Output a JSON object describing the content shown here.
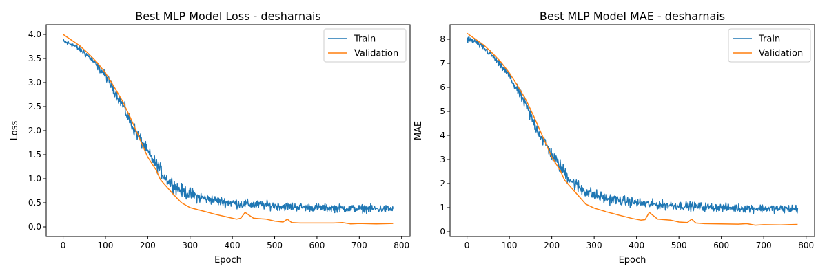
{
  "chart_data": [
    {
      "type": "line",
      "title": "Best MLP Model Loss - desharnais",
      "xlabel": "Epoch",
      "ylabel": "Loss",
      "xlim": [
        -40,
        820
      ],
      "ylim": [
        -0.2,
        4.2
      ],
      "xticks": [
        0,
        100,
        200,
        300,
        400,
        500,
        600,
        700,
        800
      ],
      "yticks": [
        0.0,
        0.5,
        1.0,
        1.5,
        2.0,
        2.5,
        3.0,
        3.5,
        4.0
      ],
      "ytick_labels": [
        "0.0",
        "0.5",
        "1.0",
        "1.5",
        "2.0",
        "2.5",
        "3.0",
        "3.5",
        "4.0"
      ],
      "legend": "top-right",
      "grid": false,
      "series": [
        {
          "name": "Train",
          "color": "#1f77b4",
          "x": [
            0,
            10,
            20,
            30,
            40,
            50,
            60,
            70,
            80,
            90,
            100,
            110,
            120,
            130,
            140,
            150,
            160,
            170,
            180,
            190,
            200,
            210,
            220,
            230,
            240,
            250,
            260,
            270,
            280,
            290,
            300,
            320,
            340,
            360,
            380,
            400,
            420,
            450,
            480,
            510,
            540,
            570,
            600,
            640,
            680,
            720,
            760,
            780
          ],
          "y": [
            3.85,
            3.82,
            3.8,
            3.74,
            3.68,
            3.62,
            3.55,
            3.45,
            3.35,
            3.25,
            3.15,
            3.0,
            2.85,
            2.7,
            2.55,
            2.35,
            2.15,
            2.0,
            1.85,
            1.7,
            1.55,
            1.42,
            1.3,
            1.18,
            1.05,
            0.95,
            0.88,
            0.8,
            0.75,
            0.72,
            0.68,
            0.62,
            0.58,
            0.55,
            0.52,
            0.5,
            0.48,
            0.46,
            0.45,
            0.43,
            0.42,
            0.41,
            0.4,
            0.39,
            0.38,
            0.38,
            0.37,
            0.37
          ],
          "noise": [
            0.08,
            0.1,
            0.07,
            0.1,
            0.08,
            0.12,
            0.09,
            0.1,
            0.1,
            0.12,
            0.13,
            0.15,
            0.15,
            0.18,
            0.18,
            0.2,
            0.2,
            0.2,
            0.2,
            0.2,
            0.18,
            0.18,
            0.2,
            0.2,
            0.2,
            0.2,
            0.22,
            0.22,
            0.2,
            0.2,
            0.2,
            0.18,
            0.16,
            0.15,
            0.15,
            0.15,
            0.14,
            0.14,
            0.13,
            0.13,
            0.13,
            0.12,
            0.12,
            0.12,
            0.12,
            0.12,
            0.12,
            0.12
          ]
        },
        {
          "name": "Validation",
          "color": "#ff7f0e",
          "x": [
            0,
            20,
            40,
            60,
            80,
            100,
            120,
            140,
            160,
            180,
            200,
            220,
            230,
            240,
            260,
            280,
            300,
            330,
            360,
            390,
            410,
            420,
            430,
            450,
            480,
            500,
            520,
            530,
            540,
            560,
            600,
            640,
            660,
            680,
            700,
            740,
            780
          ],
          "y": [
            4.0,
            3.88,
            3.76,
            3.6,
            3.42,
            3.2,
            2.92,
            2.62,
            2.25,
            1.85,
            1.45,
            1.18,
            0.98,
            0.88,
            0.68,
            0.5,
            0.4,
            0.33,
            0.26,
            0.2,
            0.16,
            0.18,
            0.3,
            0.18,
            0.16,
            0.12,
            0.1,
            0.16,
            0.09,
            0.08,
            0.08,
            0.08,
            0.09,
            0.06,
            0.07,
            0.06,
            0.07
          ]
        }
      ]
    },
    {
      "type": "line",
      "title": "Best MLP Model MAE - desharnais",
      "xlabel": "Epoch",
      "ylabel": "MAE",
      "xlim": [
        -40,
        820
      ],
      "ylim": [
        -0.2,
        8.6
      ],
      "xticks": [
        0,
        100,
        200,
        300,
        400,
        500,
        600,
        700,
        800
      ],
      "yticks": [
        0,
        1,
        2,
        3,
        4,
        5,
        6,
        7,
        8
      ],
      "ytick_labels": [
        "0",
        "1",
        "2",
        "3",
        "4",
        "5",
        "6",
        "7",
        "8"
      ],
      "legend": "top-right",
      "grid": false,
      "series": [
        {
          "name": "Train",
          "color": "#1f77b4",
          "x": [
            0,
            10,
            20,
            30,
            40,
            50,
            60,
            70,
            80,
            90,
            100,
            110,
            120,
            130,
            140,
            150,
            160,
            170,
            180,
            190,
            200,
            210,
            220,
            230,
            240,
            250,
            260,
            270,
            280,
            290,
            300,
            320,
            340,
            360,
            380,
            400,
            420,
            450,
            480,
            510,
            540,
            570,
            600,
            640,
            680,
            720,
            760,
            780
          ],
          "y": [
            8.0,
            7.95,
            7.9,
            7.75,
            7.62,
            7.48,
            7.3,
            7.1,
            6.9,
            6.7,
            6.45,
            6.15,
            5.85,
            5.55,
            5.2,
            4.8,
            4.45,
            4.1,
            3.8,
            3.5,
            3.2,
            2.95,
            2.7,
            2.48,
            2.25,
            2.05,
            1.9,
            1.78,
            1.68,
            1.6,
            1.52,
            1.42,
            1.35,
            1.3,
            1.25,
            1.2,
            1.15,
            1.12,
            1.1,
            1.07,
            1.05,
            1.02,
            1.0,
            0.98,
            0.97,
            0.96,
            0.95,
            0.95
          ],
          "noise": [
            0.2,
            0.2,
            0.15,
            0.2,
            0.18,
            0.22,
            0.2,
            0.2,
            0.22,
            0.24,
            0.26,
            0.3,
            0.3,
            0.35,
            0.35,
            0.4,
            0.4,
            0.4,
            0.4,
            0.4,
            0.38,
            0.38,
            0.4,
            0.4,
            0.4,
            0.4,
            0.42,
            0.42,
            0.4,
            0.38,
            0.36,
            0.34,
            0.32,
            0.3,
            0.3,
            0.3,
            0.28,
            0.28,
            0.27,
            0.27,
            0.26,
            0.25,
            0.25,
            0.25,
            0.25,
            0.25,
            0.25,
            0.25
          ]
        },
        {
          "name": "Validation",
          "color": "#ff7f0e",
          "x": [
            0,
            20,
            40,
            60,
            80,
            100,
            120,
            140,
            160,
            180,
            200,
            220,
            230,
            240,
            260,
            280,
            300,
            330,
            360,
            390,
            410,
            420,
            430,
            450,
            480,
            500,
            520,
            530,
            540,
            560,
            600,
            640,
            660,
            680,
            700,
            740,
            780
          ],
          "y": [
            8.25,
            8.0,
            7.75,
            7.42,
            7.05,
            6.6,
            6.05,
            5.45,
            4.7,
            3.9,
            3.1,
            2.55,
            2.15,
            1.95,
            1.55,
            1.15,
            0.98,
            0.82,
            0.68,
            0.55,
            0.48,
            0.5,
            0.8,
            0.52,
            0.48,
            0.4,
            0.38,
            0.52,
            0.36,
            0.33,
            0.32,
            0.31,
            0.33,
            0.27,
            0.29,
            0.28,
            0.3
          ]
        }
      ]
    }
  ]
}
